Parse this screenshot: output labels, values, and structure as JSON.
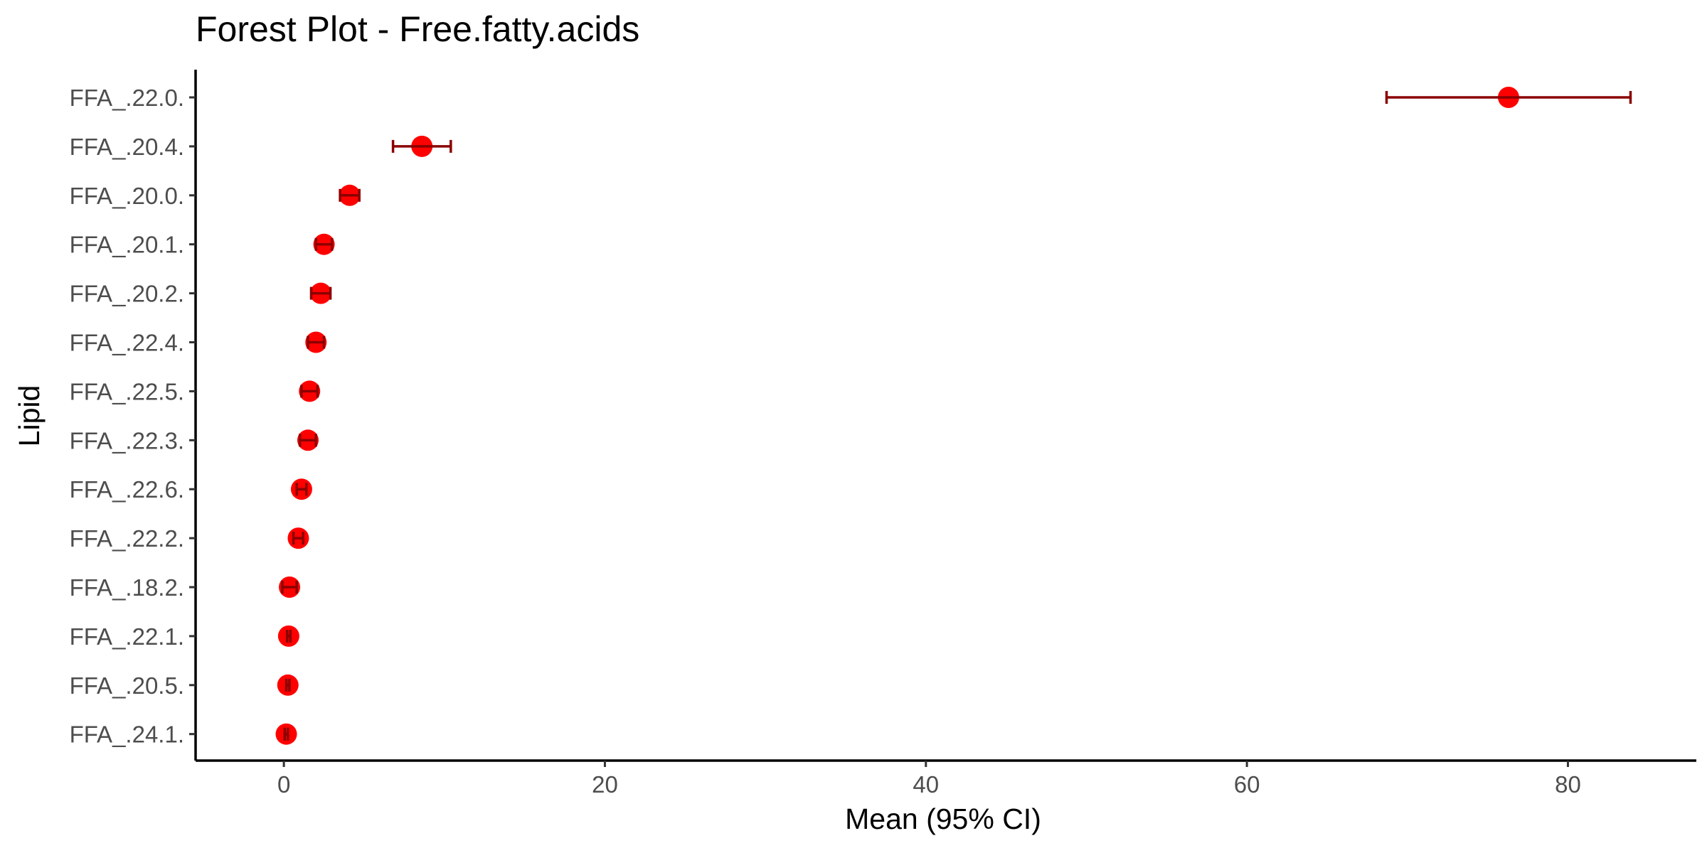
{
  "chart_data": {
    "type": "scatter",
    "title": "Forest Plot - Free.fatty.acids",
    "xlabel": "Mean (95% CI)",
    "ylabel": "Lipid",
    "xlim": [
      -5.5,
      88
    ],
    "xticks": [
      0,
      20,
      40,
      60,
      80
    ],
    "xtick_labels": [
      "0",
      "20",
      "40",
      "60",
      "80"
    ],
    "grid": false,
    "legend": "none",
    "categories": [
      "FFA_.22.0.",
      "FFA_.20.4.",
      "FFA_.20.0.",
      "FFA_.20.1.",
      "FFA_.20.2.",
      "FFA_.22.4.",
      "FFA_.22.5.",
      "FFA_.22.3.",
      "FFA_.22.6.",
      "FFA_.22.2.",
      "FFA_.18.2.",
      "FFA_.22.1.",
      "FFA_.20.5.",
      "FFA_.24.1."
    ],
    "series": [
      {
        "mean": [
          76.3,
          8.6,
          4.1,
          2.5,
          2.3,
          2.0,
          1.6,
          1.5,
          1.1,
          0.9,
          0.35,
          0.3,
          0.25,
          0.15
        ],
        "lower": [
          68.7,
          6.8,
          3.5,
          2.0,
          1.7,
          1.5,
          1.1,
          1.0,
          0.8,
          0.6,
          -0.1,
          0.2,
          0.15,
          0.05
        ],
        "upper": [
          83.9,
          10.4,
          4.7,
          3.0,
          2.9,
          2.5,
          2.1,
          2.0,
          1.4,
          1.2,
          0.8,
          0.4,
          0.35,
          0.25
        ]
      }
    ],
    "colors": {
      "point": "#ff0000",
      "errorbar": "#8b0000",
      "axis": "#000000",
      "tick_label": "#4d4d4d"
    }
  }
}
